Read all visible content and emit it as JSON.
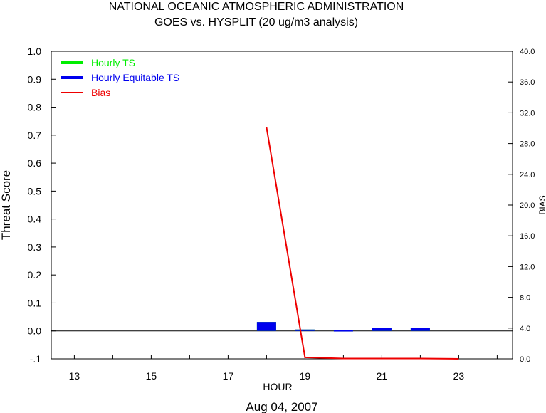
{
  "chart_data": {
    "type": "bar",
    "title": "NATIONAL OCEANIC ATMOSPHERIC ADMINISTRATION",
    "subtitle": "GOES vs. HYSPLIT  (20 ug/m3 analysis)",
    "xlabel": "HOUR",
    "ylabel": "Threat Score",
    "y2label": "BIAS",
    "date_label": "Aug 04, 2007",
    "xlim": [
      12.4,
      24.4
    ],
    "xticks": [
      13,
      14,
      15,
      16,
      17,
      18,
      19,
      20,
      21,
      22,
      23,
      24
    ],
    "xtick_labels": [
      "13",
      "15",
      "17",
      "19",
      "21",
      "23"
    ],
    "xtick_label_values": [
      13,
      15,
      17,
      19,
      21,
      23
    ],
    "ylim": [
      -0.1,
      1.0
    ],
    "yticks": [
      "1.0",
      "0.9",
      "0.8",
      "0.7",
      "0.6",
      "0.5",
      "0.4",
      "0.3",
      "0.2",
      "0.1",
      "0.0",
      "-.1"
    ],
    "ytick_values": [
      1.0,
      0.9,
      0.8,
      0.7,
      0.6,
      0.5,
      0.4,
      0.3,
      0.2,
      0.1,
      0.0,
      -0.1
    ],
    "y2lim": [
      0.0,
      40.0
    ],
    "y2ticks": [
      "40.0",
      "36.0",
      "32.0",
      "28.0",
      "24.0",
      "20.0",
      "16.0",
      "12.0",
      "8.0",
      "4.0",
      "0.0"
    ],
    "y2tick_values": [
      40,
      36,
      32,
      28,
      24,
      20,
      16,
      12,
      8,
      4,
      0
    ],
    "grid": false,
    "legend_position": "top-left",
    "legend": [
      {
        "label": "Hourly TS",
        "color": "#00ee00"
      },
      {
        "label": "Hourly Equitable TS",
        "color": "#0000ee"
      },
      {
        "label": "Bias",
        "color": "#ee0000"
      }
    ],
    "series": [
      {
        "name": "Hourly TS",
        "kind": "bar",
        "color": "#00ee00",
        "x": [
          18,
          19,
          20,
          21,
          22
        ],
        "values": [
          0.032,
          0.005,
          0.003,
          0.01,
          0.01
        ]
      },
      {
        "name": "Hourly Equitable TS",
        "kind": "bar",
        "color": "#0000ee",
        "x": [
          18,
          19,
          20,
          21,
          22
        ],
        "values": [
          0.032,
          0.005,
          0.003,
          0.01,
          0.01
        ]
      },
      {
        "name": "Bias",
        "kind": "line",
        "axis": "right",
        "color": "#ee0000",
        "x": [
          18,
          19,
          20,
          21,
          22,
          23
        ],
        "values": [
          30.1,
          0.2,
          0.05,
          0.05,
          0.05,
          0.0
        ]
      }
    ]
  }
}
